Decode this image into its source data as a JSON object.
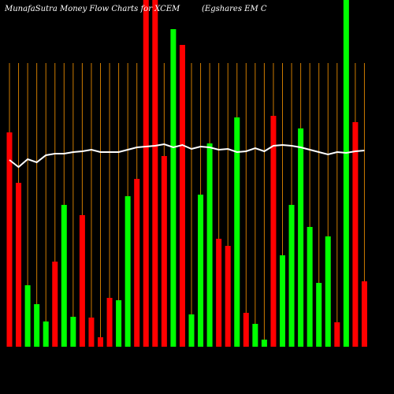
{
  "chart_data": {
    "type": "bar",
    "title": "MunafaSutra  Money Flow  Charts for XCEM",
    "subtitle": "(Egshares EM C",
    "ylim": [
      0,
      440
    ],
    "values": [
      272,
      208,
      78,
      54,
      32,
      108,
      180,
      38,
      167,
      37,
      12,
      62,
      59,
      191,
      213,
      440,
      440,
      242,
      403,
      383,
      41,
      193,
      258,
      137,
      128,
      291,
      43,
      29,
      9,
      293,
      116,
      180,
      277,
      152,
      81,
      140,
      31,
      440,
      285,
      83
    ],
    "colors": [
      "#ff0000",
      "#ff0000",
      "#00ff00",
      "#00ff00",
      "#00ff00",
      "#ff0000",
      "#00ff00",
      "#00ff00",
      "#ff0000",
      "#ff0000",
      "#ff0000",
      "#ff0000",
      "#00ff00",
      "#00ff00",
      "#ff0000",
      "#ff0000",
      "#ff0000",
      "#ff0000",
      "#00ff00",
      "#ff0000",
      "#00ff00",
      "#00ff00",
      "#00ff00",
      "#ff0000",
      "#ff0000",
      "#00ff00",
      "#ff0000",
      "#00ff00",
      "#00ff00",
      "#ff0000",
      "#00ff00",
      "#00ff00",
      "#00ff00",
      "#00ff00",
      "#00ff00",
      "#00ff00",
      "#ff0000",
      "#00ff00",
      "#ff0000",
      "#ff0000"
    ],
    "line": {
      "color": "#ffffff",
      "values": [
        237,
        228,
        238,
        234,
        243,
        245,
        245,
        247,
        248,
        250,
        247,
        247,
        247,
        250,
        253,
        254,
        255,
        257,
        253,
        256,
        251,
        254,
        253,
        250,
        251,
        247,
        248,
        252,
        248,
        255,
        256,
        255,
        253,
        250,
        247,
        244,
        247,
        246,
        248,
        249
      ]
    },
    "guide_color": "#cc7a00"
  }
}
